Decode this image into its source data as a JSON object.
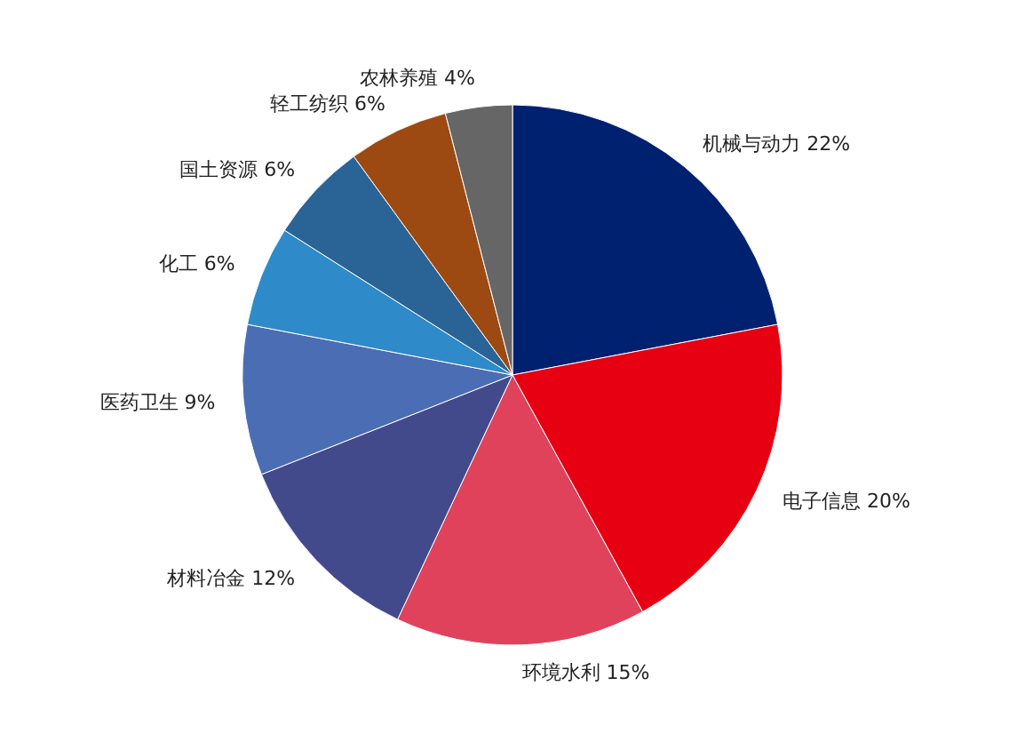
{
  "chart_data": {
    "type": "pie",
    "categories": [
      "机械与动力",
      "电子信息",
      "环境水利",
      "材料冶金",
      "医药卫生",
      "化工",
      "国土资源",
      "轻工纺织",
      "农林养殖"
    ],
    "values": [
      22,
      20,
      15,
      12,
      9,
      6,
      6,
      6,
      4
    ],
    "value_labels": [
      "22%",
      "20%",
      "15%",
      "12%",
      "9%",
      "6%",
      "6%",
      "6%",
      "4%"
    ],
    "colors": [
      "#002070",
      "#e60012",
      "#e0425c",
      "#434a8c",
      "#4a6db4",
      "#2e8ac8",
      "#2a6396",
      "#9c4a12",
      "#666666"
    ]
  }
}
